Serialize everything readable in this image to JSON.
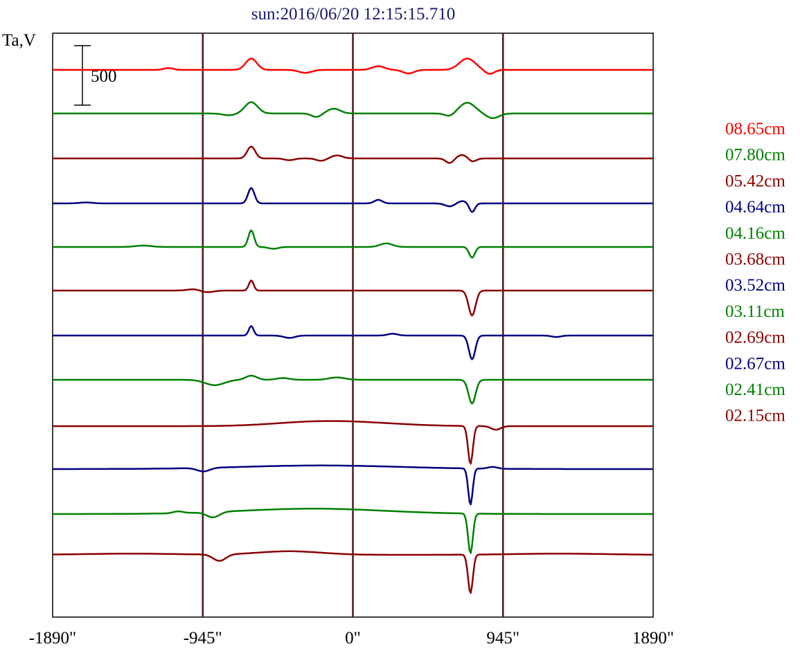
{
  "chart_data": {
    "type": "line",
    "title": "sun:2016/06/20 12:15:15.710",
    "ylabel": "Ta,V",
    "scale_bar_label": "500",
    "scale_bar_value": 500,
    "xlim": [
      -1890,
      1890
    ],
    "x_ticks": [
      {
        "value": -1890,
        "label": "-1890\""
      },
      {
        "value": -945,
        "label": "-945\""
      },
      {
        "value": 0,
        "label": "0\""
      },
      {
        "value": 945,
        "label": "945\""
      },
      {
        "value": 1890,
        "label": "1890\""
      }
    ],
    "vertical_markers": [
      -945,
      0,
      945
    ],
    "colors": {
      "red": "#ff0000",
      "green": "#008000",
      "maroon": "#8b0000",
      "navy": "#000080",
      "marker": "#4a1a1a",
      "title": "#1a1a6e"
    },
    "series": [
      {
        "name": "08.65cm",
        "color": "#ff0000",
        "shape": "p8"
      },
      {
        "name": "07.80cm",
        "color": "#008000",
        "shape": "p7"
      },
      {
        "name": "05.42cm",
        "color": "#8b0000",
        "shape": "p5"
      },
      {
        "name": "04.64cm",
        "color": "#000080",
        "shape": "p4"
      },
      {
        "name": "04.16cm",
        "color": "#008000",
        "shape": "p4g"
      },
      {
        "name": "03.68cm",
        "color": "#8b0000",
        "shape": "p3"
      },
      {
        "name": "03.52cm",
        "color": "#000080",
        "shape": "p3b"
      },
      {
        "name": "03.11cm",
        "color": "#008000",
        "shape": "p3g"
      },
      {
        "name": "02.69cm",
        "color": "#8b0000",
        "shape": "p2"
      },
      {
        "name": "02.67cm",
        "color": "#000080",
        "shape": "p2b"
      },
      {
        "name": "02.41cm",
        "color": "#008000",
        "shape": "p2g"
      },
      {
        "name": "02.15cm",
        "color": "#8b0000",
        "shape": "p1"
      }
    ]
  }
}
